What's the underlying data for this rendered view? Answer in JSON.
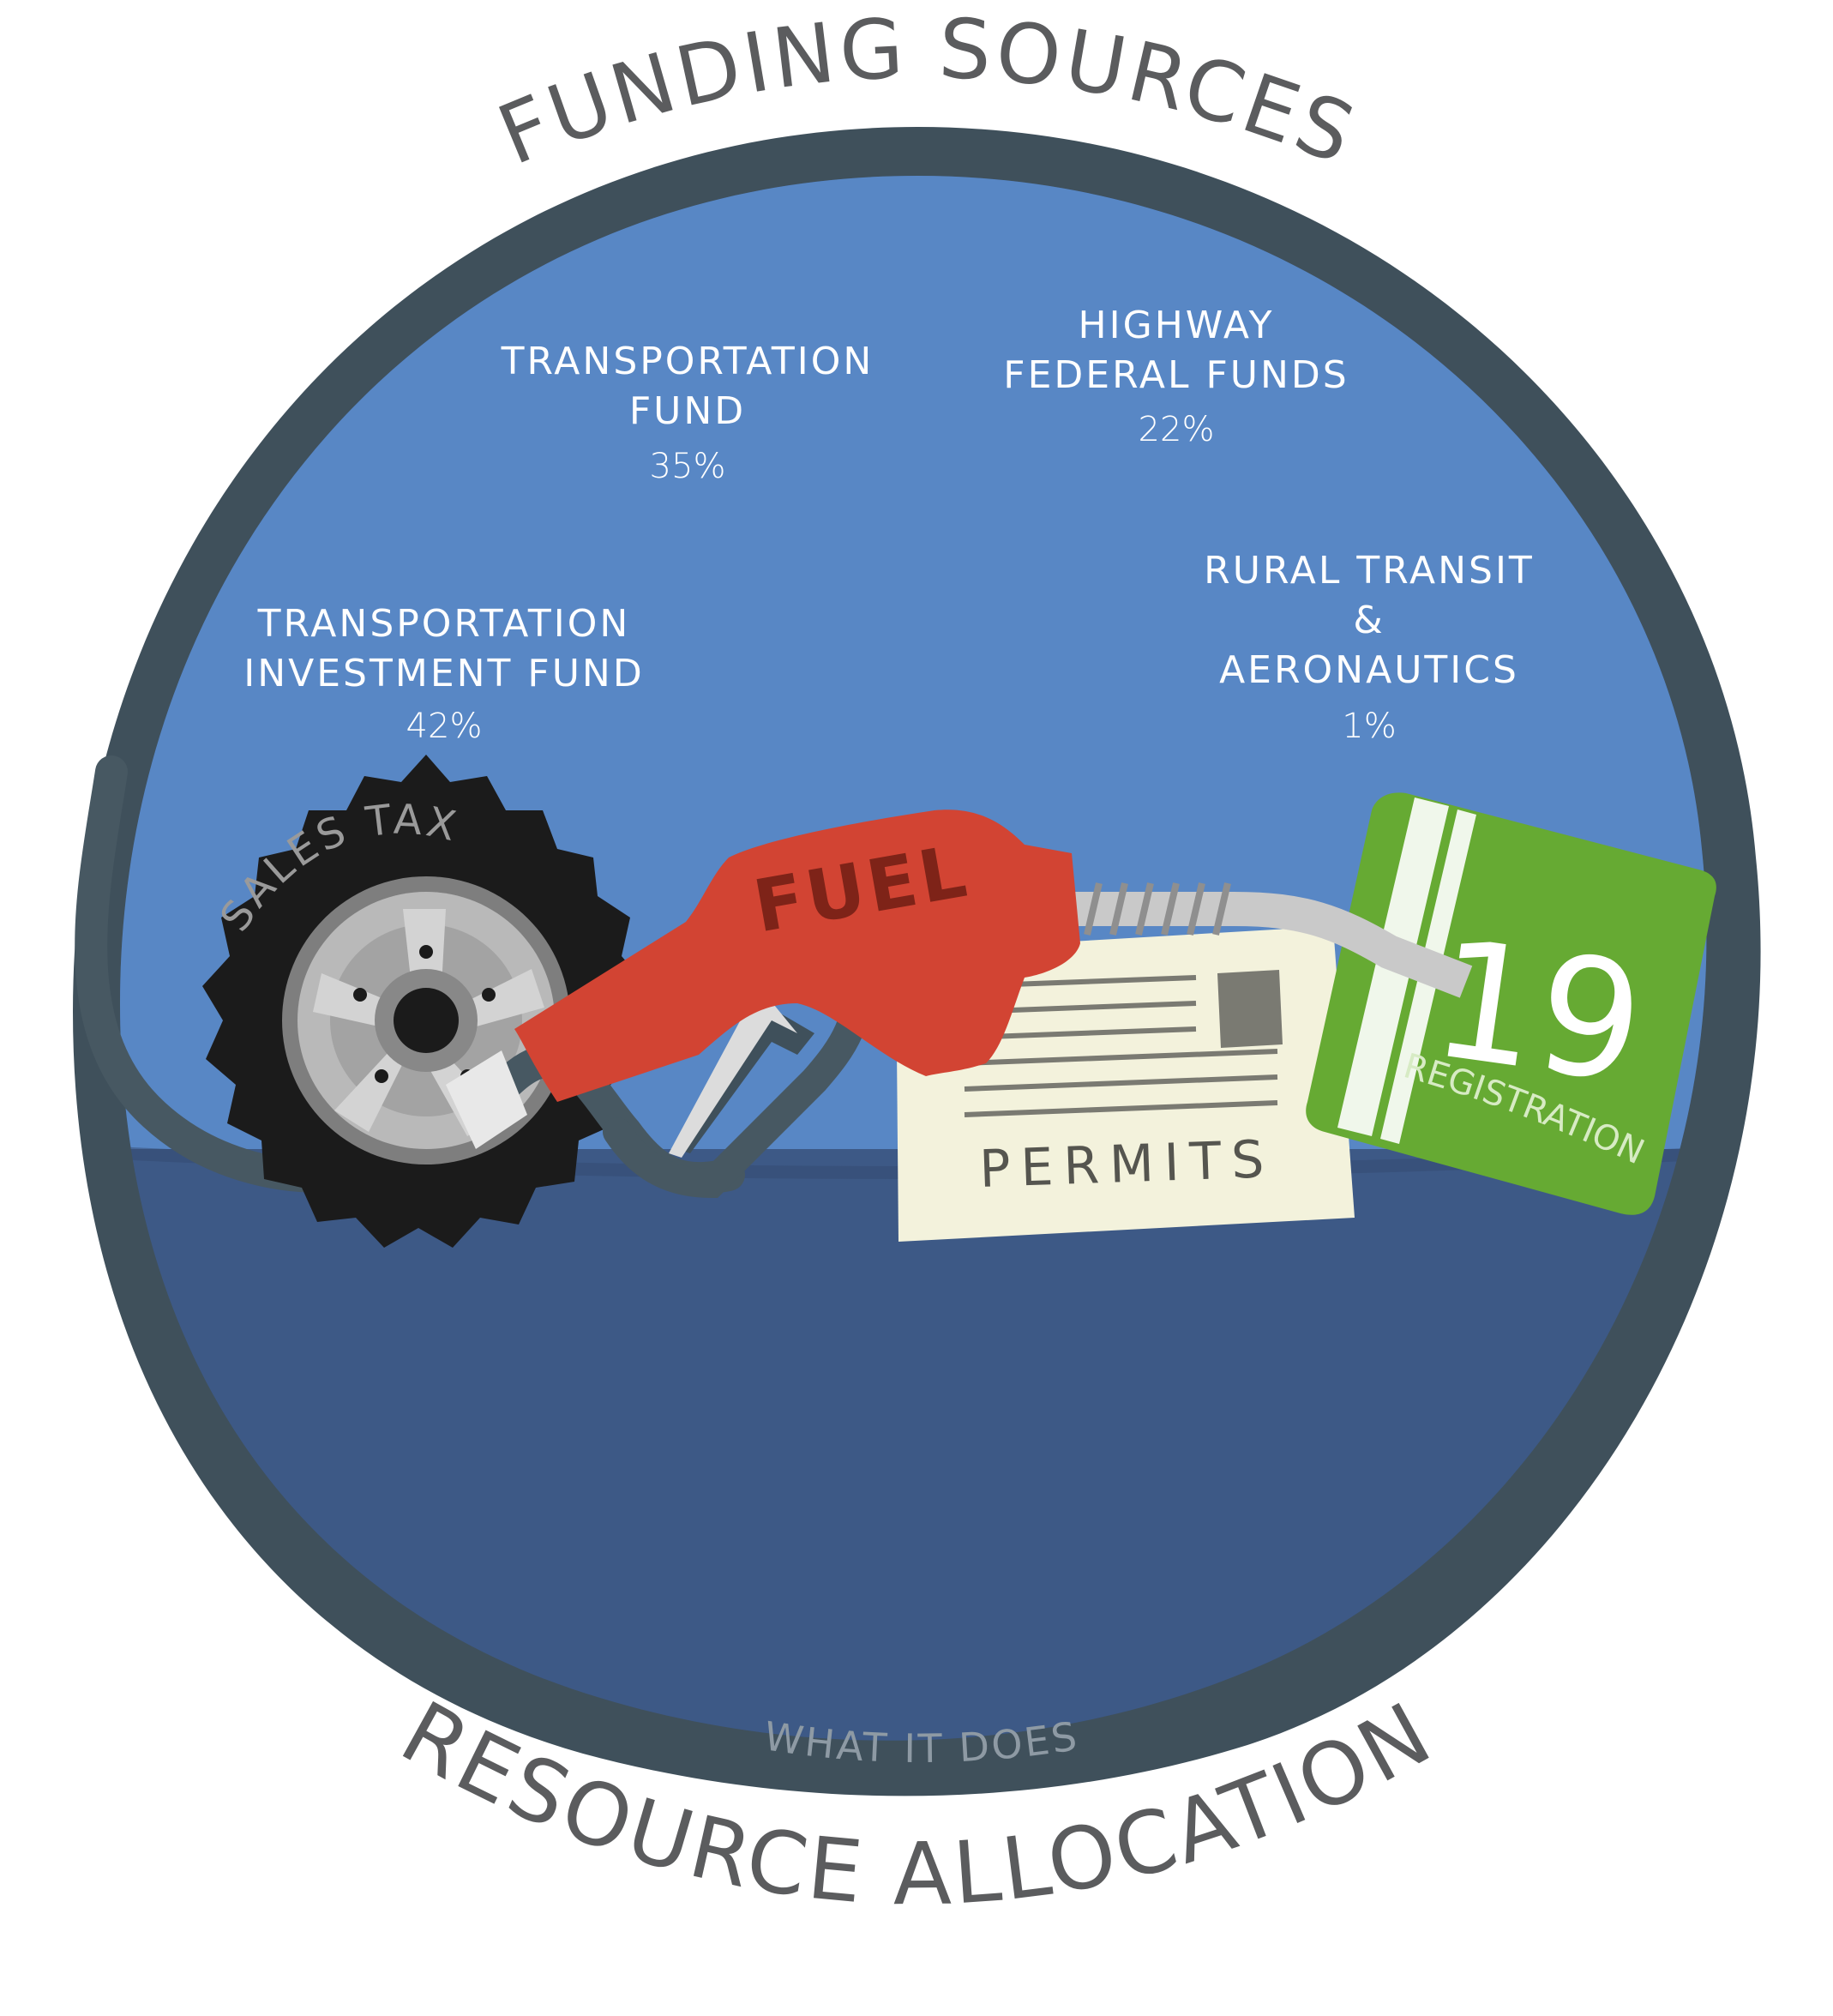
{
  "title": "FUNDING SOURCES",
  "footer_title": "RESOURCE ALLOCATION",
  "footer_subtitle": "WHAT IT DOES",
  "funds": [
    {
      "name_lines": [
        "TRANSPORTATION",
        "INVESTMENT FUND"
      ],
      "percent": "42%"
    },
    {
      "name_lines": [
        "TRANSPORTATION",
        "FUND"
      ],
      "percent": "35%"
    },
    {
      "name_lines": [
        "HIGHWAY",
        "FEDERAL FUNDS"
      ],
      "percent": "22%"
    },
    {
      "name_lines": [
        "RURAL TRANSIT",
        "&",
        "AERONAUTICS"
      ],
      "percent": "1%"
    }
  ],
  "sources": {
    "tire": "SALES TAX",
    "fuel": "FUEL",
    "permits": "PERMITS",
    "registration_number": "19",
    "registration_label": "REGISTRATION"
  },
  "colors": {
    "outer_ring": "#3f505b",
    "upper_blue": "#5887c5",
    "lower_blue": "#3d5986",
    "fuel_red": "#d24433",
    "registration_green": "#66aa33",
    "permit_paper": "#f3f2dc",
    "hose": "#475862"
  }
}
